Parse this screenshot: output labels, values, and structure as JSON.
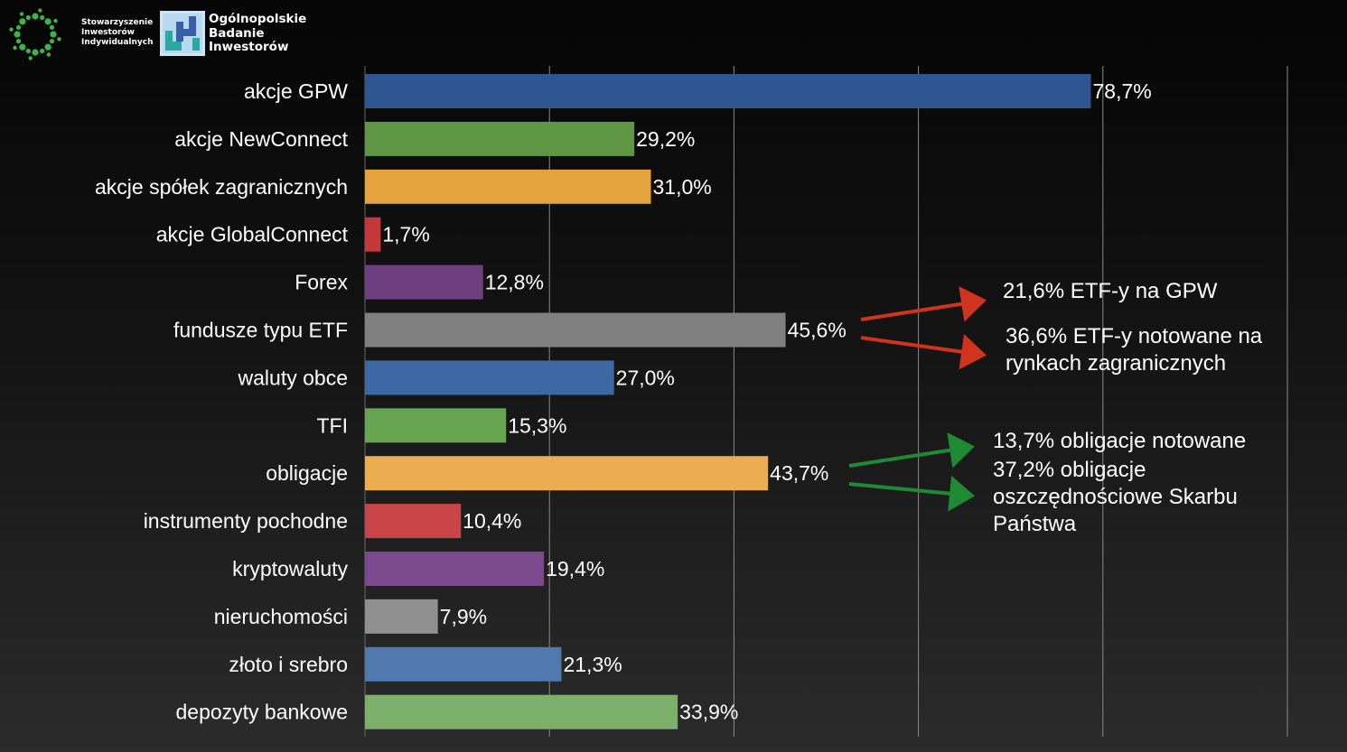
{
  "header": {
    "org1": {
      "line1": "Stowarzyszenie",
      "line2": "Inwestorów",
      "line3": "Indywidualnych",
      "icon": "ring-of-dots-logo-icon",
      "color": "#3cb44a"
    },
    "org2": {
      "line1": "Ogólnopolskie",
      "line2": "Badanie",
      "line3": "Inwestorów",
      "icon": "obi-square-logo-icon"
    }
  },
  "chart_data": {
    "type": "bar",
    "orientation": "horizontal",
    "categories": [
      "akcje GPW",
      "akcje NewConnect",
      "akcje spółek zagranicznych",
      "akcje GlobalConnect",
      "Forex",
      "fundusze typu ETF",
      "waluty obce",
      "TFI",
      "obligacje",
      "instrumenty pochodne",
      "kryptowaluty",
      "nieruchomości",
      "złoto i srebro",
      "depozyty bankowe"
    ],
    "values": [
      78.7,
      29.2,
      31.0,
      1.7,
      12.8,
      45.6,
      27.0,
      15.3,
      43.7,
      10.4,
      19.4,
      7.9,
      21.3,
      33.9
    ],
    "value_labels": [
      "78,7%",
      "29,2%",
      "31,0%",
      "1,7%",
      "12,8%",
      "45,6%",
      "27,0%",
      "15,3%",
      "43,7%",
      "10,4%",
      "19,4%",
      "7,9%",
      "21,3%",
      "33,9%"
    ],
    "colors": [
      "#2e5590",
      "#5e9644",
      "#e6a23c",
      "#c4383a",
      "#6e3f7e",
      "#808080",
      "#3e68a4",
      "#68a552",
      "#ebac52",
      "#c94447",
      "#7b4a8c",
      "#909090",
      "#5079b0",
      "#7cb06a"
    ],
    "xlim": [
      0,
      100
    ],
    "grid": true,
    "legend": "none"
  },
  "annotations": {
    "etf_gpw": "21,6% ETF-y na GPW",
    "etf_foreign": "36,6% ETF-y notowane na rynkach zagranicznych",
    "bonds_listed": "13,7% obligacje notowane",
    "bonds_savings": "37,2% obligacje oszczędnościowe Skarbu Państwa",
    "arrow_color_etf": "#d0341c",
    "arrow_color_bonds": "#1e8a34"
  }
}
